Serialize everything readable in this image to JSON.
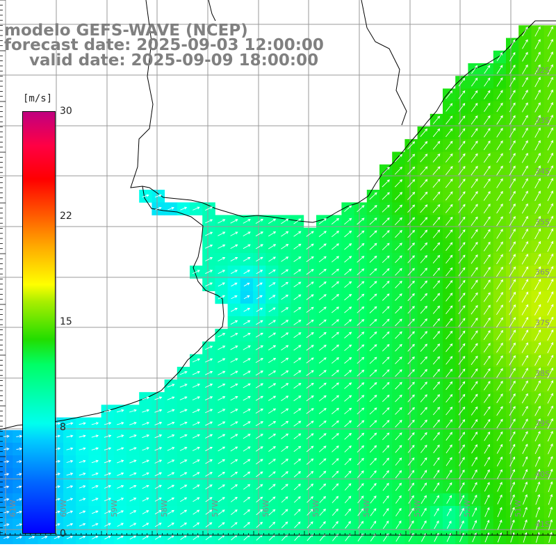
{
  "title": {
    "line1": "modelo GEFS-WAVE (NCEP)",
    "line2": "forecast date: 2025-09-03 12:00:00",
    "line3": "valid date: 2025-09-09 18:00:00"
  },
  "colorbar": {
    "units": "[m/s]",
    "min": 0,
    "max": 30,
    "ticks": [
      {
        "value": 30,
        "label": "30"
      },
      {
        "value": 22,
        "label": "22"
      },
      {
        "value": 15,
        "label": "15"
      },
      {
        "value": 8,
        "label": "8"
      },
      {
        "value": 0,
        "label": "0"
      }
    ],
    "stops": [
      "#0000ff",
      "#0066ff",
      "#00ccff",
      "#00ffee",
      "#00ff66",
      "#22dd00",
      "#aaee00",
      "#ffff00",
      "#ffaa00",
      "#ff5500",
      "#ff0000",
      "#ff0044",
      "#c00080"
    ]
  },
  "map": {
    "region": "Rio de la Plata / South Atlantic",
    "lat_range": [
      -41.5,
      -31
    ],
    "lon_range": [
      -62,
      -51
    ],
    "lat_labels": [
      "32S",
      "33S",
      "34S",
      "35S",
      "36S",
      "37S",
      "38S",
      "39S",
      "40S",
      "41S"
    ],
    "lon_labels": [
      "61W",
      "60W",
      "59W",
      "58W",
      "57W",
      "56W",
      "55W",
      "54W",
      "53W",
      "52W",
      "51W"
    ],
    "colors": {
      "land": "#ffffff",
      "grid": "#999999",
      "coast": "#000000",
      "vector": "#ffffff"
    }
  }
}
